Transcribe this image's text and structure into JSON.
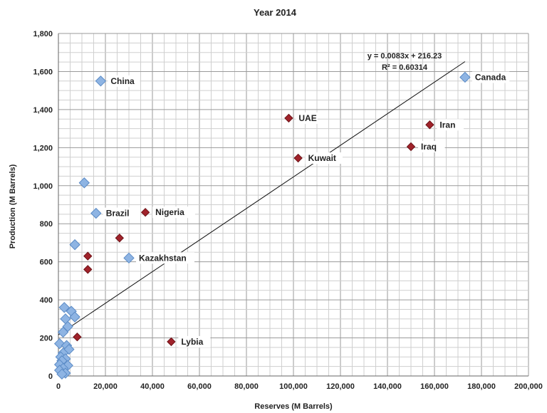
{
  "chart_data": {
    "type": "scatter",
    "title": "Year 2014",
    "xlabel": "Reserves (M Barrels)",
    "ylabel": "Production (M Barrels)",
    "xlim": [
      0,
      200000
    ],
    "ylim": [
      0,
      1800
    ],
    "x_ticks": [
      0,
      20000,
      40000,
      60000,
      80000,
      100000,
      120000,
      140000,
      160000,
      180000,
      200000
    ],
    "x_tick_labels": [
      "0",
      "20,000",
      "40,000",
      "60,000",
      "80,000",
      "100,000",
      "120,000",
      "140,000",
      "160,000",
      "180,000",
      "200,000"
    ],
    "y_ticks": [
      0,
      200,
      400,
      600,
      800,
      1000,
      1200,
      1400,
      1600,
      1800
    ],
    "y_tick_labels": [
      "0",
      "200",
      "400",
      "600",
      "800",
      "1,000",
      "1,200",
      "1,400",
      "1,600",
      "1,800"
    ],
    "grid": true,
    "colors": {
      "blue_marker": "#8EB4E3",
      "blue_edge": "#5B8BC6",
      "red_marker": "#A0232B",
      "red_edge": "#6E1318"
    },
    "series": [
      {
        "marker_color": "blue",
        "points": [
          {
            "x": 18000,
            "y": 1550,
            "label": "China"
          },
          {
            "x": 173000,
            "y": 1570,
            "label": "Canada"
          },
          {
            "x": 16000,
            "y": 855,
            "label": "Brazil"
          },
          {
            "x": 30000,
            "y": 620,
            "label": "Kazakhstan"
          },
          {
            "x": 11000,
            "y": 1015,
            "label": ""
          },
          {
            "x": 7000,
            "y": 690,
            "label": ""
          },
          {
            "x": 2500,
            "y": 360,
            "label": ""
          },
          {
            "x": 5500,
            "y": 340,
            "label": ""
          },
          {
            "x": 7000,
            "y": 310,
            "label": ""
          },
          {
            "x": 3000,
            "y": 300,
            "label": ""
          },
          {
            "x": 4000,
            "y": 260,
            "label": ""
          },
          {
            "x": 2000,
            "y": 230,
            "label": ""
          },
          {
            "x": 500,
            "y": 170,
            "label": ""
          },
          {
            "x": 3500,
            "y": 160,
            "label": ""
          },
          {
            "x": 4500,
            "y": 140,
            "label": ""
          },
          {
            "x": 2000,
            "y": 120,
            "label": ""
          },
          {
            "x": 1000,
            "y": 100,
            "label": ""
          },
          {
            "x": 3000,
            "y": 90,
            "label": ""
          },
          {
            "x": 1500,
            "y": 80,
            "label": ""
          },
          {
            "x": 500,
            "y": 60,
            "label": ""
          },
          {
            "x": 4000,
            "y": 55,
            "label": ""
          },
          {
            "x": 2000,
            "y": 40,
            "label": ""
          },
          {
            "x": 500,
            "y": 30,
            "label": ""
          },
          {
            "x": 3000,
            "y": 15,
            "label": ""
          },
          {
            "x": 1500,
            "y": 10,
            "label": ""
          }
        ]
      },
      {
        "marker_color": "red",
        "points": [
          {
            "x": 98000,
            "y": 1355,
            "label": "UAE"
          },
          {
            "x": 158000,
            "y": 1320,
            "label": "Iran"
          },
          {
            "x": 150000,
            "y": 1205,
            "label": "Iraq"
          },
          {
            "x": 102000,
            "y": 1145,
            "label": "Kuwait"
          },
          {
            "x": 37000,
            "y": 860,
            "label": "Nigeria"
          },
          {
            "x": 48000,
            "y": 180,
            "label": "Lybia"
          },
          {
            "x": 26000,
            "y": 725,
            "label": ""
          },
          {
            "x": 12500,
            "y": 630,
            "label": ""
          },
          {
            "x": 12500,
            "y": 560,
            "label": ""
          },
          {
            "x": 8000,
            "y": 205,
            "label": ""
          }
        ]
      }
    ],
    "trendline": {
      "slope": 0.0083,
      "intercept": 216.23,
      "x_range": [
        0,
        173000
      ],
      "equation": "y = 0.0083x + 216.23",
      "r2_label": "R² = 0.60314"
    }
  }
}
